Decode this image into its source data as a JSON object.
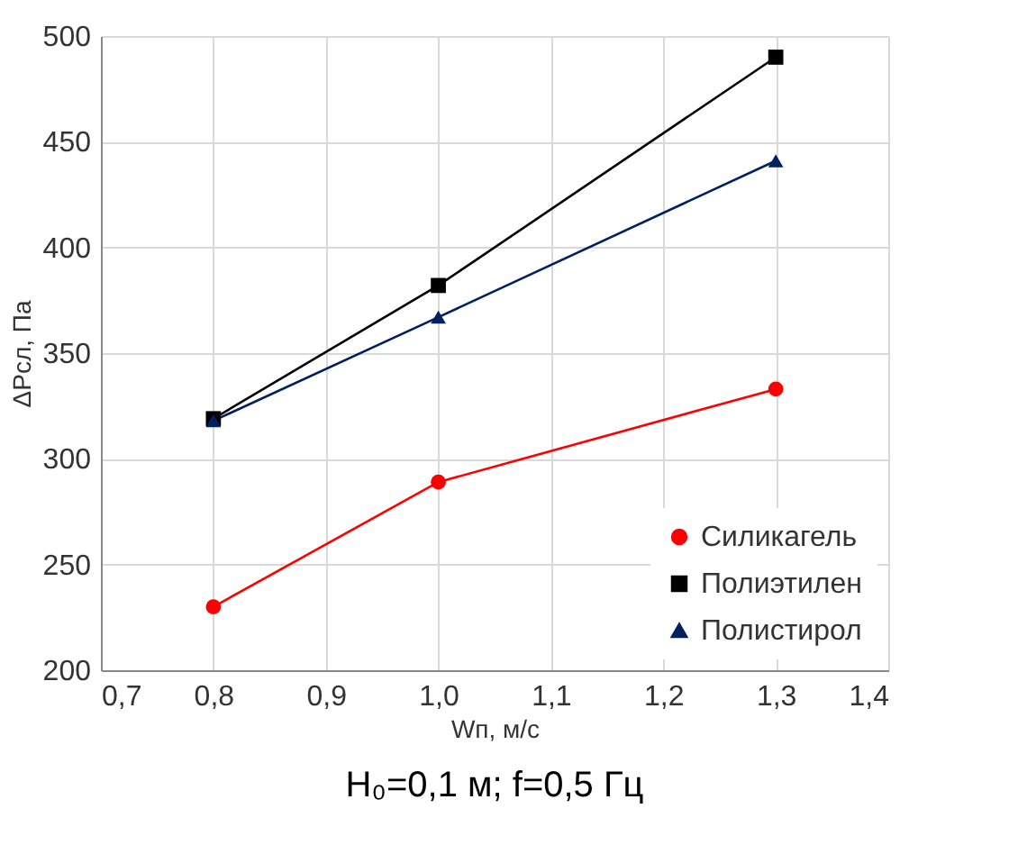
{
  "chart_data": {
    "type": "line",
    "xlabel": "Wп, м/с",
    "ylabel": "ΔРсл, Па",
    "annotations": [
      "H₀=0,1 м; f=0,5 Гц"
    ],
    "x": [
      0.8,
      1.0,
      1.3
    ],
    "series": [
      {
        "name": "Силикагель",
        "color": "#ff0000",
        "marker": "circle",
        "values": [
          230,
          289,
          333
        ]
      },
      {
        "name": "Полиэтилен",
        "color": "#000000",
        "marker": "square",
        "values": [
          319,
          382,
          490
        ]
      },
      {
        "name": "Полистирол",
        "color": "#002060",
        "marker": "triangle",
        "values": [
          318,
          367,
          441
        ]
      }
    ],
    "xlim": [
      0.7,
      1.4
    ],
    "xticks": [
      {
        "value": 0.7,
        "label": "0,7"
      },
      {
        "value": 0.8,
        "label": "0,8"
      },
      {
        "value": 0.9,
        "label": "0,9"
      },
      {
        "value": 1.0,
        "label": "1,0"
      },
      {
        "value": 1.1,
        "label": "1,1"
      },
      {
        "value": 1.2,
        "label": "1,2"
      },
      {
        "value": 1.3,
        "label": "1,3"
      },
      {
        "value": 1.4,
        "label": "1,4"
      }
    ],
    "ylim": [
      200,
      500
    ],
    "yticks": [
      200,
      250,
      300,
      350,
      400,
      450,
      500
    ],
    "grid": true,
    "legend": "bottom right",
    "line_style": "solid"
  }
}
